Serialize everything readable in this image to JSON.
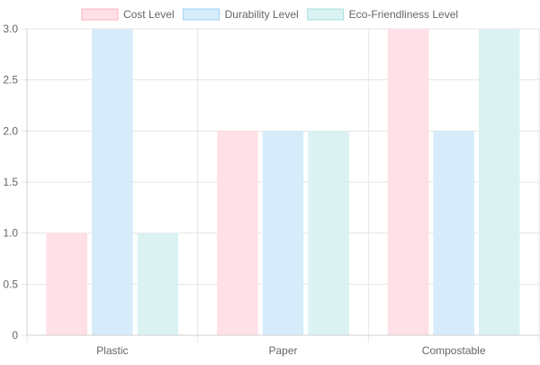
{
  "chart_data": {
    "type": "bar",
    "title": "",
    "xlabel": "",
    "ylabel": "",
    "categories": [
      "Plastic",
      "Paper",
      "Compostable"
    ],
    "series": [
      {
        "name": "Cost Level",
        "values": [
          1,
          2,
          3
        ],
        "fill": "#ffe0e6",
        "stroke": "#ffb1c1"
      },
      {
        "name": "Durability Level",
        "values": [
          3,
          2,
          2
        ],
        "fill": "#d7ecfb",
        "stroke": "#9ad0f5"
      },
      {
        "name": "Eco-Friendliness Level",
        "values": [
          1,
          2,
          3
        ],
        "fill": "#dbf2f2",
        "stroke": "#a5dfdf"
      }
    ],
    "y_ticks": [
      "0",
      "0.5",
      "1.0",
      "1.5",
      "2.0",
      "2.5",
      "3.0"
    ],
    "ylim": [
      0,
      3
    ],
    "grid": true,
    "legend_position": "top-center",
    "colors": {
      "grid": "#e6e6e6",
      "axis": "#d0d0d0",
      "tick_text": "#666666",
      "legend_text": "#666666"
    }
  }
}
